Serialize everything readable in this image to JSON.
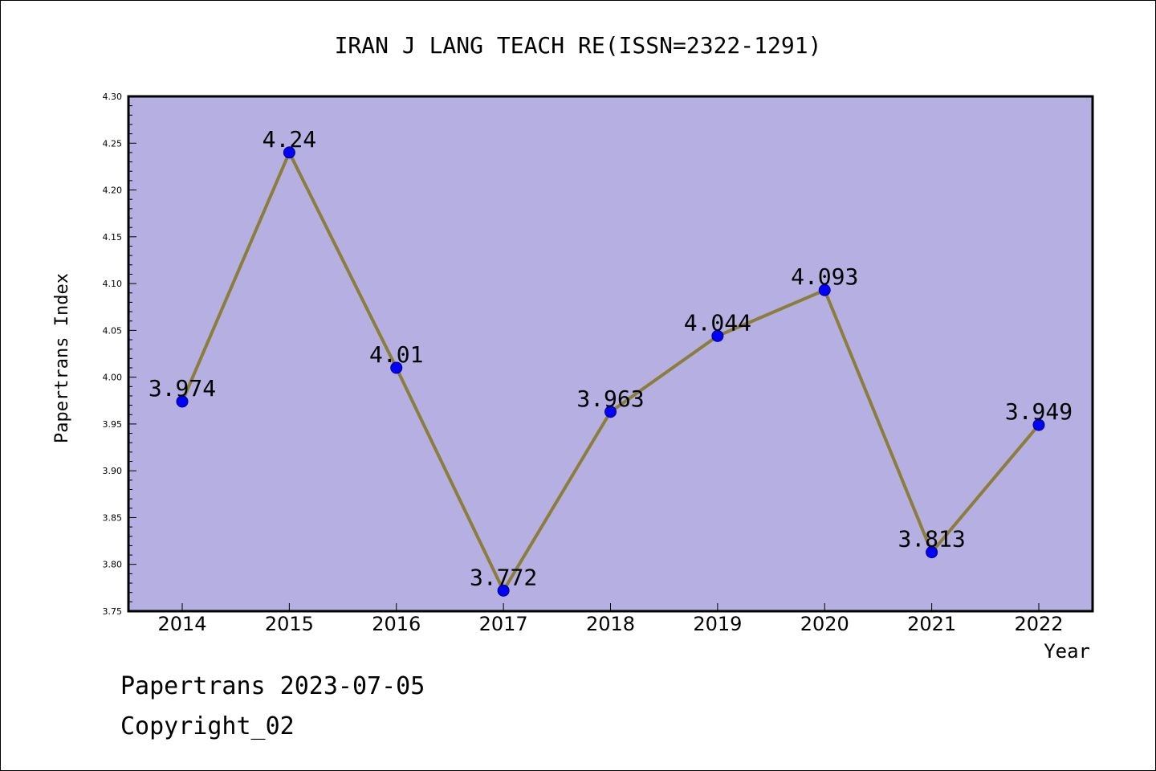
{
  "chart_data": {
    "type": "line",
    "title": "IRAN J LANG TEACH RE(ISSN=2322-1291)",
    "xlabel": "Year",
    "ylabel": "Papertrans Index",
    "categories": [
      "2014",
      "2015",
      "2016",
      "2017",
      "2018",
      "2019",
      "2020",
      "2021",
      "2022"
    ],
    "values": [
      3.974,
      4.24,
      4.01,
      3.772,
      3.963,
      4.044,
      4.093,
      3.813,
      3.949
    ],
    "value_labels": [
      "3.974",
      "4.24",
      "4.01",
      "3.772",
      "3.963",
      "4.044",
      "4.093",
      "3.813",
      "3.949"
    ],
    "ylim": [
      3.75,
      4.3
    ],
    "yticks": [
      "3.75",
      "3.80",
      "3.85",
      "3.90",
      "3.95",
      "4.00",
      "4.05",
      "4.10",
      "4.15",
      "4.20",
      "4.25",
      "4.30"
    ],
    "grid": false,
    "colors": {
      "plot_background": "#b5afe2",
      "line": "#8b7d3a",
      "marker": "#0000ff",
      "marker_edge": "#000080"
    }
  },
  "footer": {
    "line1": "Papertrans 2023-07-05",
    "line2": "Copyright_02"
  }
}
